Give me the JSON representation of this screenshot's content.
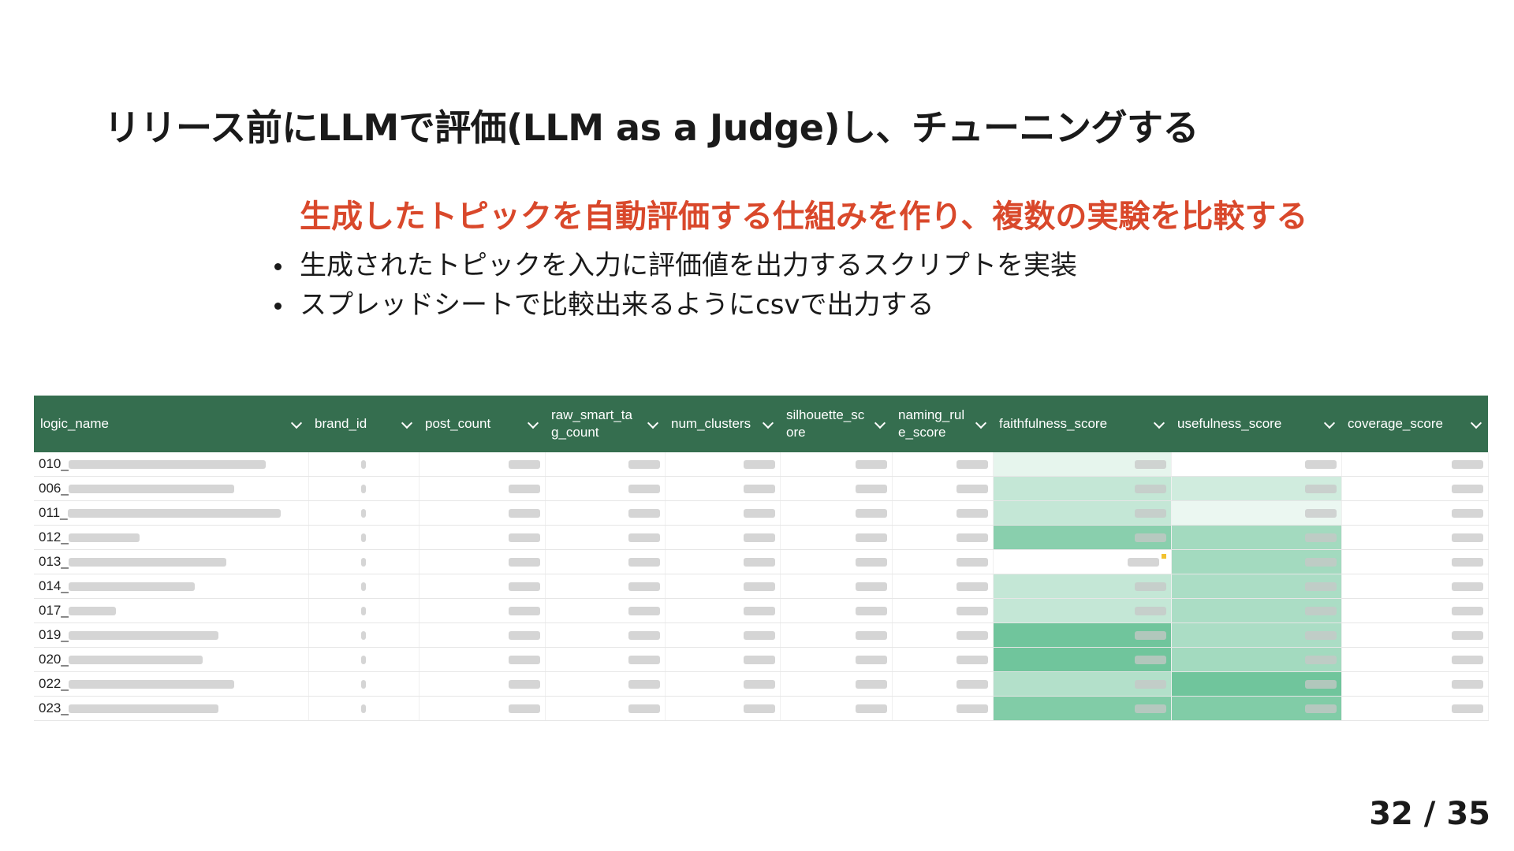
{
  "title": "リリース前にLLMで評価(LLM as a Judge)し、チューニングする",
  "subtitle": "生成したトピックを自動評価する仕組みを作り、複数の実験を比較する",
  "bullets": [
    "生成されたトピックを入力に評価値を出力するスクリプトを実装",
    "スプレッドシートで比較出来るようにcsvで出力する"
  ],
  "table": {
    "header_color": "#356e4f",
    "columns": [
      "logic_name",
      "brand_id",
      "post_count",
      "raw_smart_tag_count",
      "num_clusters",
      "silhouette_score",
      "naming_rule_score",
      "faithfulness_score",
      "usefulness_score",
      "coverage_score"
    ],
    "rows": [
      {
        "prefix": "010_",
        "faithfulness_level": 0.15,
        "usefulness_level": 0.0
      },
      {
        "prefix": "006_",
        "faithfulness_level": 0.35,
        "usefulness_level": 0.28
      },
      {
        "prefix": "011_",
        "faithfulness_level": 0.35,
        "usefulness_level": 0.12
      },
      {
        "prefix": "012_",
        "faithfulness_level": 0.7,
        "usefulness_level": 0.55
      },
      {
        "prefix": "013_",
        "faithfulness_level": 0.0,
        "usefulness_level": 0.55
      },
      {
        "prefix": "014_",
        "faithfulness_level": 0.35,
        "usefulness_level": 0.5
      },
      {
        "prefix": "017_",
        "faithfulness_level": 0.35,
        "usefulness_level": 0.5
      },
      {
        "prefix": "019_",
        "faithfulness_level": 0.85,
        "usefulness_level": 0.5
      },
      {
        "prefix": "020_",
        "faithfulness_level": 0.85,
        "usefulness_level": 0.55
      },
      {
        "prefix": "022_",
        "faithfulness_level": 0.45,
        "usefulness_level": 0.85
      },
      {
        "prefix": "023_",
        "faithfulness_level": 0.75,
        "usefulness_level": 0.75
      }
    ]
  },
  "page_number": "32 / 35"
}
